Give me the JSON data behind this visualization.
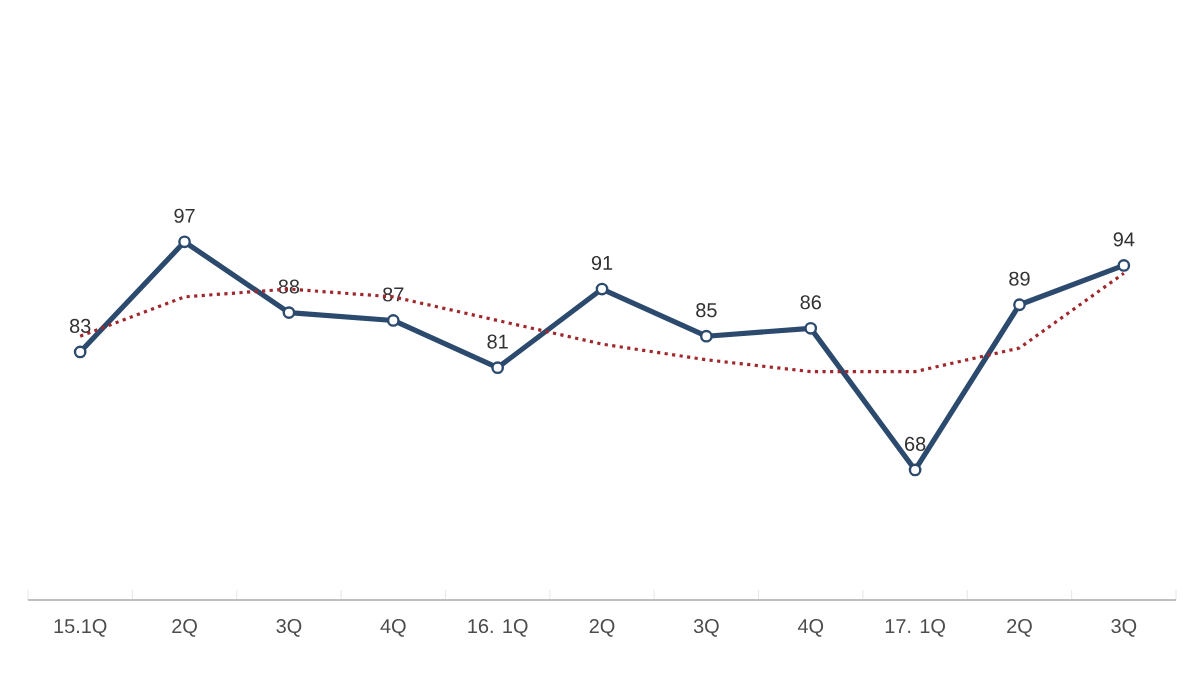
{
  "chart_data": {
    "type": "line",
    "categories": [
      "15.1Q",
      "2Q",
      "3Q",
      "4Q",
      "16. 1Q",
      "2Q",
      "3Q",
      "4Q",
      "17. 1Q",
      "2Q",
      "3Q"
    ],
    "grid": false,
    "series": [
      {
        "color": "#2b4a6e",
        "marker": "circle",
        "line_style": "solid",
        "values": [
          83,
          97,
          88,
          87,
          81,
          91,
          85,
          86,
          68,
          89,
          94
        ],
        "value_labels": [
          "83",
          "97",
          "88",
          "87",
          "81",
          "91",
          "85",
          "86",
          "68",
          "89",
          "94"
        ]
      },
      {
        "type": "line",
        "color": "#a0282d",
        "marker": "none",
        "line_style": "dotted",
        "values": [
          85,
          90,
          91,
          90,
          87,
          84,
          82,
          80.5,
          80.5,
          83.5,
          93
        ]
      }
    ]
  }
}
